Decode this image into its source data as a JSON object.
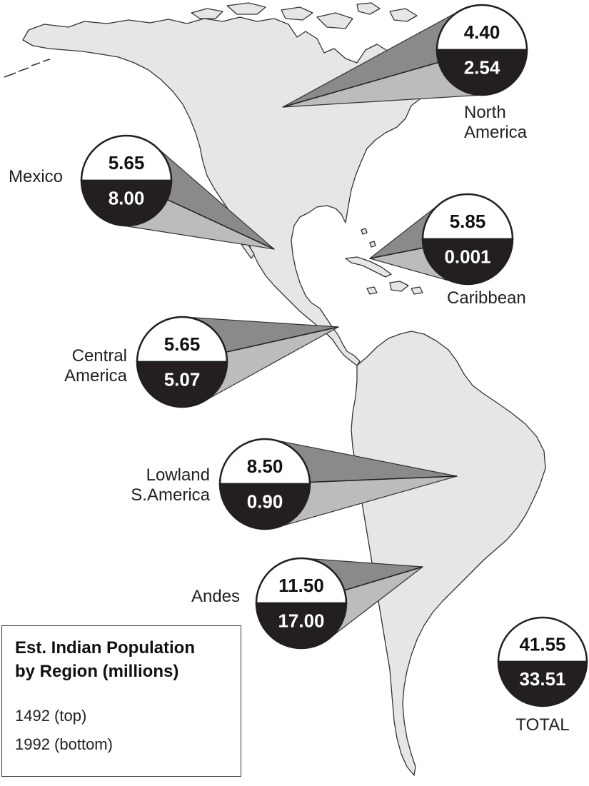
{
  "colors": {
    "land": "#e6e6e6",
    "land_outline": "#333333",
    "bubble_top": "#ffffff",
    "bubble_bottom": "#231f20",
    "wedge_upper": "#8a8a8a",
    "wedge_lower": "#bcbcbc"
  },
  "regions": [
    {
      "id": "north-america",
      "label_lines": [
        "North",
        "America"
      ],
      "value_1492": "4.40",
      "value_1992": "2.54"
    },
    {
      "id": "mexico",
      "label_lines": [
        "Mexico"
      ],
      "value_1492": "5.65",
      "value_1992": "8.00"
    },
    {
      "id": "caribbean",
      "label_lines": [
        "Caribbean"
      ],
      "value_1492": "5.85",
      "value_1992": "0.001"
    },
    {
      "id": "central-america",
      "label_lines": [
        "Central",
        "America"
      ],
      "value_1492": "5.65",
      "value_1992": "5.07"
    },
    {
      "id": "lowland-south-america",
      "label_lines": [
        "Lowland",
        "S.America"
      ],
      "value_1492": "8.50",
      "value_1992": "0.90"
    },
    {
      "id": "andes",
      "label_lines": [
        "Andes"
      ],
      "value_1492": "11.50",
      "value_1992": "17.00"
    }
  ],
  "total": {
    "label": "TOTAL",
    "value_1492": "41.55",
    "value_1992": "33.51"
  },
  "legend": {
    "title_line1": "Est. Indian Population",
    "title_line2": "by Region (millions)",
    "top_note": "1492 (top)",
    "bottom_note": "1992 (bottom)",
    "bubble_top_label": "1492",
    "bubble_bottom_label": "1992"
  }
}
